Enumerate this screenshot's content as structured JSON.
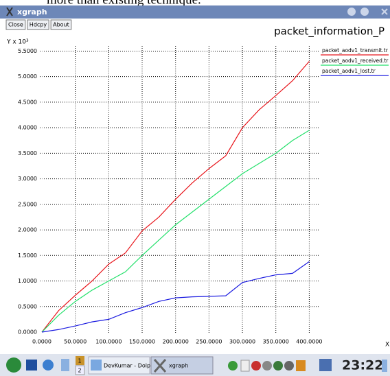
{
  "document_text": "more than existing technique.",
  "window": {
    "title": "xgraph",
    "buttons": [
      "Close",
      "Hdcpy",
      "About"
    ]
  },
  "chart_data": {
    "type": "line",
    "title": "packet_information_P",
    "ylabel": "Y x 10³",
    "xlabel": "X",
    "x": [
      0,
      25,
      50,
      75,
      100,
      125,
      150,
      175,
      200,
      225,
      250,
      275,
      300,
      325,
      350,
      375,
      400
    ],
    "series": [
      {
        "name": "packet_aodv1_transmit.tr",
        "color": "#e8141a",
        "values": [
          0,
          0.42,
          0.72,
          1.0,
          1.33,
          1.55,
          1.98,
          2.25,
          2.6,
          2.92,
          3.2,
          3.45,
          4.0,
          4.35,
          4.63,
          4.92,
          5.3
        ]
      },
      {
        "name": "packet_aodv1_received.tr",
        "color": "#22e06a",
        "values": [
          0,
          0.33,
          0.6,
          0.82,
          1.0,
          1.18,
          1.5,
          1.8,
          2.1,
          2.35,
          2.6,
          2.85,
          3.1,
          3.3,
          3.5,
          3.75,
          3.95
        ]
      },
      {
        "name": "packet_aodv1_lost.tr",
        "color": "#1a1ae0",
        "values": [
          0,
          0.05,
          0.12,
          0.2,
          0.25,
          0.38,
          0.48,
          0.6,
          0.67,
          0.69,
          0.7,
          0.71,
          0.97,
          1.05,
          1.12,
          1.15,
          1.38
        ]
      }
    ],
    "xlim": [
      0,
      415
    ],
    "ylim": [
      0,
      5.6
    ],
    "xticks": [
      {
        "value": 0,
        "label": "0.0000"
      },
      {
        "value": 50,
        "label": "50.0000"
      },
      {
        "value": 100,
        "label": "100.0000"
      },
      {
        "value": 150,
        "label": "150.0000"
      },
      {
        "value": 200,
        "label": "200.0000"
      },
      {
        "value": 250,
        "label": "250.0000"
      },
      {
        "value": 300,
        "label": "300.0000"
      },
      {
        "value": 350,
        "label": "350.0000"
      },
      {
        "value": 400,
        "label": "400.0000"
      }
    ],
    "yticks": [
      {
        "value": 0,
        "label": "0.0000"
      },
      {
        "value": 0.5,
        "label": "0.5000"
      },
      {
        "value": 1,
        "label": "1.0000"
      },
      {
        "value": 1.5,
        "label": "1.5000"
      },
      {
        "value": 2,
        "label": "2.0000"
      },
      {
        "value": 2.5,
        "label": "2.5000"
      },
      {
        "value": 3,
        "label": "3.0000"
      },
      {
        "value": 3.5,
        "label": "3.5000"
      },
      {
        "value": 4,
        "label": "4.0000"
      },
      {
        "value": 4.5,
        "label": "4.5000"
      },
      {
        "value": 5,
        "label": "5.0000"
      },
      {
        "value": 5.5,
        "label": "5.5000"
      }
    ],
    "grid": true,
    "legend": "right"
  },
  "taskbar": {
    "desktops": [
      "1",
      "2"
    ],
    "tasks": [
      "DevKumar - Dolphi",
      "xgraph"
    ],
    "clock": "23:22"
  }
}
